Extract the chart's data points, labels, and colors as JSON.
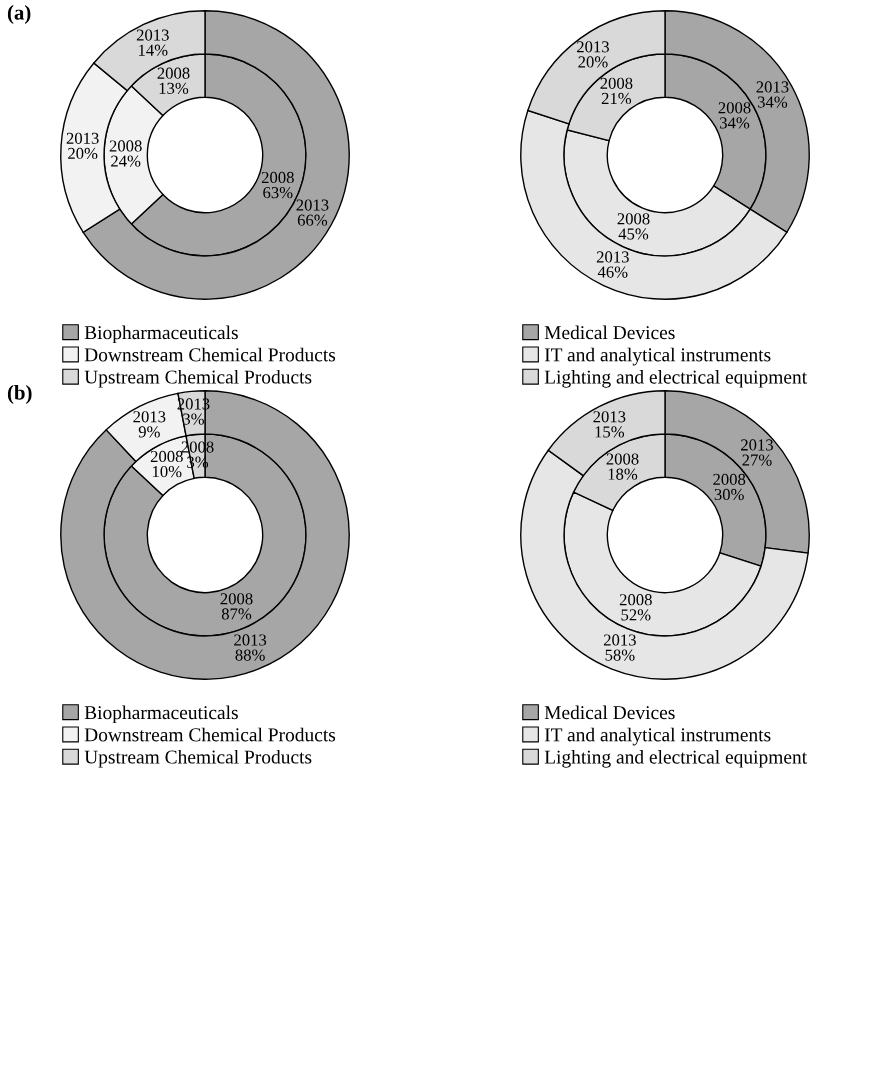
{
  "chart_data": [
    {
      "type": "donut",
      "title": "(a)",
      "categories": [
        "Biopharmaceuticals",
        "Downstream Chemical Products",
        "Upstream Chemical Products"
      ],
      "colors": [
        "#a6a6a6",
        "#f2f2f2",
        "#d9d9d9"
      ],
      "legend": "bottom",
      "series": [
        {
          "values": [
            63,
            24,
            13
          ],
          "value_labels": [
            "2008\n63%",
            "2008\n24%",
            "2008\n13%"
          ]
        },
        {
          "values": [
            66,
            20,
            14
          ],
          "value_labels": [
            "2013\n66%",
            "2013\n20%",
            "2013\n14%"
          ]
        }
      ]
    },
    {
      "type": "donut",
      "categories": [
        "Medical Devices",
        "IT and analytical instruments",
        "Lighting and electrical equipment"
      ],
      "colors": [
        "#a6a6a6",
        "#e6e6e6",
        "#d9d9d9"
      ],
      "legend": "bottom",
      "series": [
        {
          "values": [
            34,
            45,
            21
          ],
          "value_labels": [
            "2008\n34%",
            "2008\n45%",
            "2008\n21%"
          ]
        },
        {
          "values": [
            34,
            46,
            20
          ],
          "value_labels": [
            "2013\n34%",
            "2013\n46%",
            "2013\n20%"
          ]
        }
      ]
    },
    {
      "type": "donut",
      "title": "(b)",
      "categories": [
        "Biopharmaceuticals",
        "Downstream Chemical Products",
        "Upstream Chemical Products"
      ],
      "colors": [
        "#a6a6a6",
        "#f2f2f2",
        "#d9d9d9"
      ],
      "legend": "bottom",
      "series": [
        {
          "values": [
            87,
            10,
            3
          ],
          "value_labels": [
            "2008\n87%",
            "2008\n10%",
            "2008\n3%"
          ]
        },
        {
          "values": [
            88,
            9,
            3
          ],
          "value_labels": [
            "2013\n88%",
            "2013\n9%",
            "2013\n3%"
          ]
        }
      ]
    },
    {
      "type": "donut",
      "categories": [
        "Medical Devices",
        "IT and analytical instruments",
        "Lighting and electrical equipment"
      ],
      "colors": [
        "#a6a6a6",
        "#e6e6e6",
        "#d9d9d9"
      ],
      "legend": "bottom",
      "series": [
        {
          "values": [
            30,
            52,
            18
          ],
          "value_labels": [
            "2008\n30%",
            "2008\n52%",
            "2008\n18%"
          ]
        },
        {
          "values": [
            27,
            58,
            15
          ],
          "value_labels": [
            "2013\n27%",
            "2013\n58%",
            "2013\n15%"
          ]
        }
      ]
    }
  ]
}
